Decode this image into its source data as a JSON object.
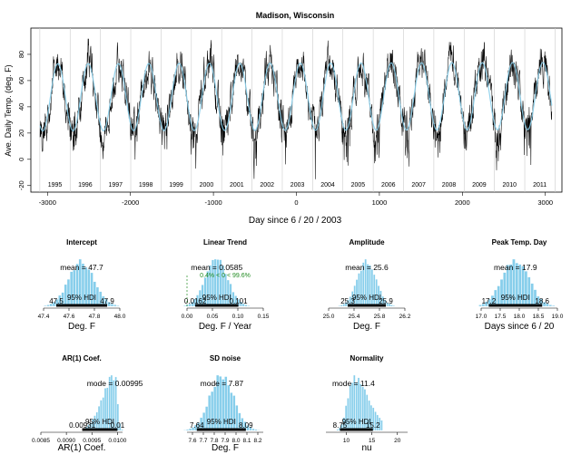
{
  "main": {
    "title": "Madison, Wisconsin",
    "xlabel": "Day since 6 / 20 / 2003",
    "ylabel": "Ave. Daily Temp. (deg. F)",
    "xlim": [
      -3200,
      3200
    ],
    "ylim": [
      -25,
      100
    ],
    "xticks": [
      -3000,
      -2000,
      -1000,
      0,
      1000,
      2000,
      3000
    ],
    "yticks": [
      -20,
      0,
      20,
      40,
      60,
      80
    ],
    "year_labels": [
      "1995",
      "1996",
      "1997",
      "1998",
      "1999",
      "2000",
      "2001",
      "2002",
      "2003",
      "2004",
      "2005",
      "2006",
      "2007",
      "2008",
      "2009",
      "2010",
      "2011"
    ],
    "fit_mean": 47.7,
    "fit_amplitude": 25.6,
    "fit_slope_per_year": 0.0585,
    "fit_peak_day": 17.9,
    "data_color": "#000000",
    "fit_color": "#87ceeb"
  },
  "chart_data": [
    {
      "type": "line",
      "title": "Madison, Wisconsin",
      "xlabel": "Day since 6 / 20 / 2003",
      "ylabel": "Ave. Daily Temp. (deg. F)",
      "xlim": [
        -3200,
        3200
      ],
      "ylim": [
        -25,
        100
      ],
      "grid": false
    },
    {
      "type": "histogram",
      "title": "Intercept",
      "xlabel": "Deg. F",
      "center_label": "mean = 47.7",
      "hdi_label": "95% HDI",
      "hdi": [
        47.5,
        47.9
      ],
      "hdi_text": [
        "47.5",
        "47.9"
      ],
      "xticks": [
        "47.4",
        "47.6",
        "47.8",
        "48.0"
      ],
      "xlim": [
        47.4,
        48.0
      ],
      "center": 47.7,
      "sd": 0.1
    },
    {
      "type": "histogram",
      "title": "Linear Trend",
      "xlabel": "Deg. F / Year",
      "center_label": "mean = 0.0585",
      "hdi_label": "95% HDI",
      "hdi": [
        0.0162,
        0.101
      ],
      "hdi_text": [
        "0.0162",
        "0.101"
      ],
      "comp_label": "0.4% < 0 < 99.6%",
      "comp_value": 0,
      "xticks": [
        "0.00",
        "0.05",
        "0.10",
        "0.15"
      ],
      "xlim": [
        0.0,
        0.15
      ],
      "center": 0.0585,
      "sd": 0.022
    },
    {
      "type": "histogram",
      "title": "Amplitude",
      "xlabel": "Deg. F",
      "center_label": "mean = 25.6",
      "hdi_label": "95% HDI",
      "hdi": [
        25.3,
        25.9
      ],
      "hdi_text": [
        "25.3",
        "25.9"
      ],
      "xticks": [
        "25.0",
        "25.4",
        "25.8",
        "26.2"
      ],
      "xlim": [
        25.0,
        26.2
      ],
      "center": 25.6,
      "sd": 0.15
    },
    {
      "type": "histogram",
      "title": "Peak Temp. Day",
      "xlabel": "Days since 6 / 20",
      "center_label": "mean = 17.9",
      "hdi_label": "95% HDI",
      "hdi": [
        17.2,
        18.6
      ],
      "hdi_text": [
        "17.2",
        "18.6"
      ],
      "xticks": [
        "17.0",
        "17.5",
        "18.0",
        "18.5",
        "19.0"
      ],
      "xlim": [
        17.0,
        19.0
      ],
      "center": 17.9,
      "sd": 0.35
    },
    {
      "type": "histogram",
      "title": "AR(1) Coef.",
      "xlabel": "AR(1) Coef.",
      "center_label": "mode = 0.00995",
      "hdi_label": "95% HDI",
      "hdi": [
        0.00931,
        0.01
      ],
      "hdi_text": [
        "0.00931",
        "0.01"
      ],
      "xticks": [
        "0.0085",
        "0.0090",
        "0.0095",
        "0.0100"
      ],
      "xlim": [
        0.0085,
        0.0101
      ],
      "center": 0.00995,
      "sd": 0.00018,
      "skew": "left"
    },
    {
      "type": "histogram",
      "title": "SD noise",
      "xlabel": "Deg. F",
      "center_label": "mode = 7.87",
      "hdi_label": "95% HDI",
      "hdi": [
        7.64,
        8.09
      ],
      "hdi_text": [
        "7.64",
        "8.09"
      ],
      "xticks": [
        "7.6",
        "7.7",
        "7.8",
        "7.9",
        "8.0",
        "8.1",
        "8.2"
      ],
      "xlim": [
        7.55,
        8.25
      ],
      "center": 7.87,
      "sd": 0.11
    },
    {
      "type": "histogram",
      "title": "Normality",
      "xlabel": "nu",
      "center_label": "mode = 11.4",
      "hdi_label": "95% HDI",
      "hdi": [
        8.75,
        15.2
      ],
      "hdi_text": [
        "8.75",
        "15.2"
      ],
      "xticks": [
        "10",
        "15",
        "20"
      ],
      "xlim": [
        6.0,
        22.0
      ],
      "center": 11.4,
      "sd": 1.8,
      "skew": "right"
    }
  ]
}
